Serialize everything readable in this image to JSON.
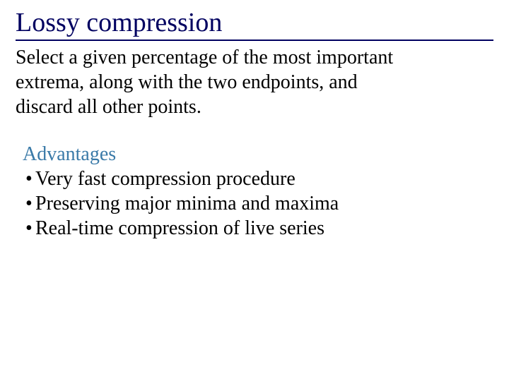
{
  "title": "Lossy compression",
  "description": "Select a given percentage of the most important extrema, along with the two endpoints, and discard all other points.",
  "advantages": {
    "heading": "Advantages",
    "items": [
      "Very fast compression procedure",
      "Preserving major minima and maxima",
      "Real-time compression of live series"
    ]
  },
  "colors": {
    "title_color": "#000060",
    "title_underline": "#000060",
    "body_text": "#000000",
    "adv_heading": "#3a7aa8",
    "background": "#ffffff"
  },
  "typography": {
    "font_family": "Times New Roman",
    "title_fontsize_pt": 28,
    "body_fontsize_pt": 21
  },
  "bullet_glyph": "•"
}
